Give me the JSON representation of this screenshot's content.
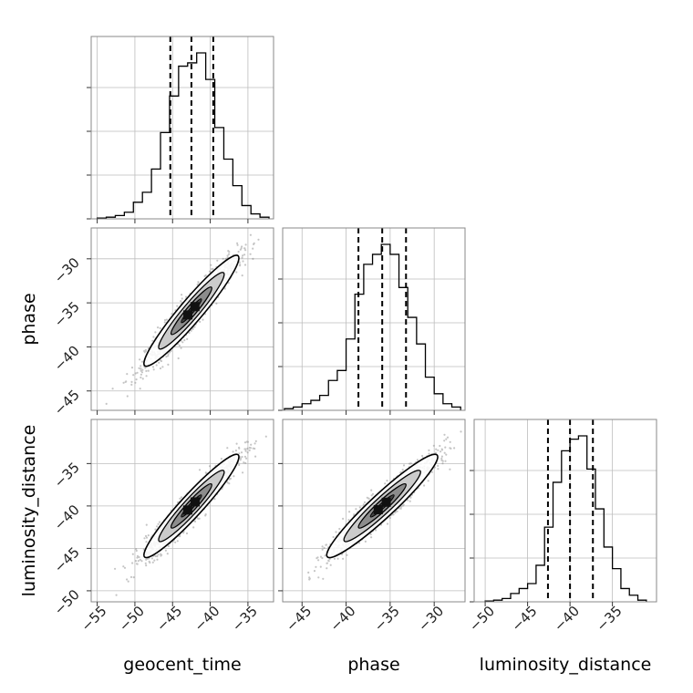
{
  "chart_data": {
    "type": "corner",
    "parameters": [
      "geocent_time",
      "phase",
      "luminosity_distance"
    ],
    "ranges": {
      "geocent_time": [
        -55.8,
        -31.6
      ],
      "phase": [
        -47.2,
        -26.5
      ],
      "luminosity_distance": [
        -51.3,
        -29.8
      ]
    },
    "ticks": {
      "geocent_time": [
        -55,
        -50,
        -45,
        -40,
        -35
      ],
      "phase": [
        -45,
        -40,
        -35,
        -30
      ],
      "luminosity_distance": [
        -50,
        -45,
        -40,
        -35
      ]
    },
    "quantiles": {
      "geocent_time": [
        -45.3,
        -42.5,
        -39.6
      ],
      "phase": [
        -38.6,
        -35.9,
        -33.2
      ],
      "luminosity_distance": [
        -42.6,
        -40.0,
        -37.3
      ]
    },
    "histograms": {
      "geocent_time": {
        "edges": [
          -55.0,
          -53.8,
          -52.6,
          -51.4,
          -50.2,
          -49.0,
          -47.8,
          -46.6,
          -45.4,
          -44.2,
          -43.0,
          -41.8,
          -40.6,
          -39.4,
          -38.2,
          -37.0,
          -35.8,
          -34.6,
          -33.4,
          -32.2
        ],
        "counts": [
          0.005,
          0.01,
          0.02,
          0.04,
          0.1,
          0.16,
          0.3,
          0.52,
          0.74,
          0.92,
          0.94,
          1.0,
          0.84,
          0.55,
          0.36,
          0.2,
          0.08,
          0.03,
          0.01
        ]
      },
      "phase": {
        "edges": [
          -47.0,
          -46.0,
          -45.0,
          -44.0,
          -43.0,
          -42.0,
          -41.0,
          -40.0,
          -39.0,
          -38.0,
          -37.0,
          -36.0,
          -35.0,
          -34.0,
          -33.0,
          -32.0,
          -31.0,
          -30.0,
          -29.0,
          -28.0,
          -27.0
        ],
        "counts": [
          0.01,
          0.02,
          0.04,
          0.06,
          0.09,
          0.18,
          0.24,
          0.43,
          0.7,
          0.88,
          0.94,
          1.0,
          0.94,
          0.74,
          0.56,
          0.4,
          0.2,
          0.1,
          0.04,
          0.02
        ]
      },
      "luminosity_distance": {
        "edges": [
          -50.0,
          -49.0,
          -48.0,
          -47.0,
          -46.0,
          -45.0,
          -44.0,
          -43.0,
          -42.0,
          -41.0,
          -40.0,
          -39.0,
          -38.0,
          -37.0,
          -36.0,
          -35.0,
          -34.0,
          -33.0,
          -32.0,
          -31.0
        ],
        "counts": [
          0.005,
          0.01,
          0.02,
          0.05,
          0.08,
          0.11,
          0.22,
          0.45,
          0.72,
          0.91,
          0.98,
          1.0,
          0.8,
          0.56,
          0.33,
          0.2,
          0.08,
          0.04,
          0.01
        ]
      }
    },
    "scatter_panels": [
      {
        "x": "geocent_time",
        "y": "phase",
        "mean": [
          -42.5,
          -35.9
        ],
        "sd": [
          3.0,
          3.0
        ],
        "corr": 0.95,
        "n": 1400
      },
      {
        "x": "geocent_time",
        "y": "luminosity_distance",
        "mean": [
          -42.5,
          -40.0
        ],
        "sd": [
          3.0,
          2.9
        ],
        "corr": 0.95,
        "n": 1400
      },
      {
        "x": "phase",
        "y": "luminosity_distance",
        "mean": [
          -35.9,
          -40.0
        ],
        "sd": [
          3.0,
          2.9
        ],
        "corr": 0.95,
        "n": 1400
      }
    ],
    "grid": true,
    "quantile_line_style": "dashed"
  }
}
